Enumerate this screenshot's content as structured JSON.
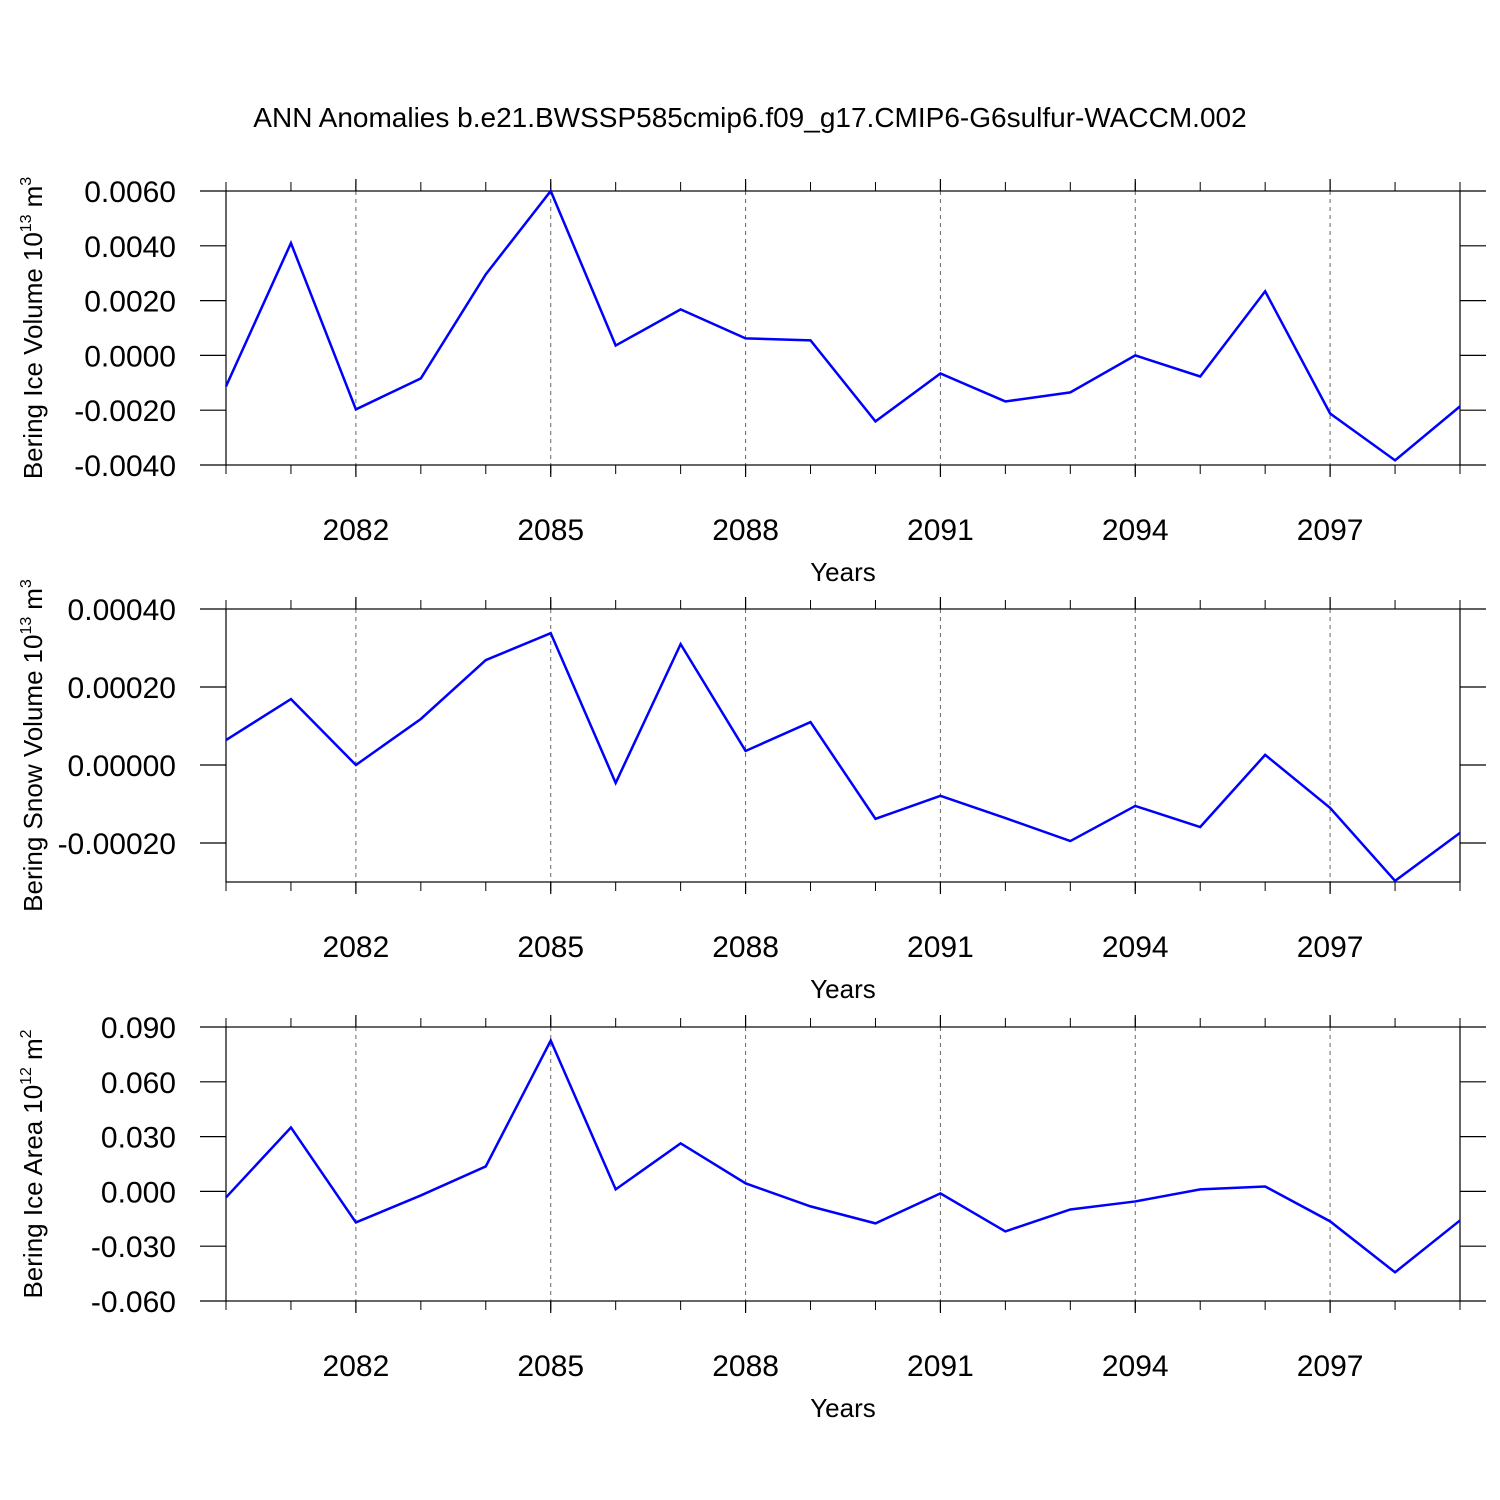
{
  "chart_data": [
    {
      "type": "line",
      "title": "ANN Anomalies b.e21.BWSSP585cmip6.f09_g17.CMIP6-G6sulfur-WACCM.002",
      "xlabel": "Years",
      "ylabel": {
        "text": "Bering Ice Volume",
        "base": "10",
        "exponent": "13",
        "unit": "m",
        "unit_exponent": "3"
      },
      "x": [
        2080,
        2081,
        2082,
        2083,
        2084,
        2085,
        2086,
        2087,
        2088,
        2089,
        2090,
        2091,
        2092,
        2093,
        2094,
        2095,
        2096,
        2097,
        2098,
        2099
      ],
      "series": [
        {
          "color": "#0000ff",
          "values": [
            -0.00113,
            0.0041,
            -0.00197,
            -0.00084,
            0.00296,
            0.006,
            0.00036,
            0.00168,
            0.00062,
            0.00055,
            -0.00241,
            -0.00066,
            -0.00168,
            -0.00135,
            0.0,
            -0.00077,
            0.00234,
            -0.00212,
            -0.00383,
            -0.00186
          ]
        }
      ],
      "xlim": [
        2080,
        2099
      ],
      "xticks": [
        2082,
        2085,
        2088,
        2091,
        2094,
        2097
      ],
      "ylim": [
        -0.004,
        0.006
      ],
      "yticks": [
        {
          "value": -0.004,
          "label": "-0.0040"
        },
        {
          "value": -0.002,
          "label": "-0.0020"
        },
        {
          "value": 0,
          "label": "0.0000"
        },
        {
          "value": 0.002,
          "label": "0.0020"
        },
        {
          "value": 0.004,
          "label": "0.0040"
        },
        {
          "value": 0.006,
          "label": "0.0060"
        }
      ],
      "grid": "x-dashed"
    },
    {
      "type": "line",
      "xlabel": "Years",
      "ylabel": {
        "text": "Bering Snow Volume",
        "base": "10",
        "exponent": "13",
        "unit": "m",
        "unit_exponent": "3"
      },
      "x": [
        2080,
        2081,
        2082,
        2083,
        2084,
        2085,
        2086,
        2087,
        2088,
        2089,
        2090,
        2091,
        2092,
        2093,
        2094,
        2095,
        2096,
        2097,
        2098,
        2099
      ],
      "series": [
        {
          "color": "#0000ff",
          "values": [
            6.4e-05,
            0.000169,
            0.0,
            0.000118,
            0.000269,
            0.000338,
            -4.6e-05,
            0.00031,
            3.6e-05,
            0.00011,
            -0.000138,
            -7.9e-05,
            -0.000136,
            -0.000195,
            -0.000105,
            -0.000159,
            2.6e-05,
            -0.00011,
            -0.000297,
            -0.000174
          ]
        }
      ],
      "xlim": [
        2080,
        2099
      ],
      "xticks": [
        2082,
        2085,
        2088,
        2091,
        2094,
        2097
      ],
      "ylim": [
        -0.0003,
        0.0004
      ],
      "yticks": [
        {
          "value": -0.0002,
          "label": "-0.00020"
        },
        {
          "value": 0,
          "label": "0.00000"
        },
        {
          "value": 0.0002,
          "label": "0.00020"
        },
        {
          "value": 0.0004,
          "label": "0.00040"
        }
      ],
      "grid": "x-dashed"
    },
    {
      "type": "line",
      "xlabel": "Years",
      "ylabel": {
        "text": "Bering Ice Area",
        "base": "10",
        "exponent": "12",
        "unit": "m",
        "unit_exponent": "2"
      },
      "x": [
        2080,
        2081,
        2082,
        2083,
        2084,
        2085,
        2086,
        2087,
        2088,
        2089,
        2090,
        2091,
        2092,
        2093,
        2094,
        2095,
        2096,
        2097,
        2098,
        2099
      ],
      "series": [
        {
          "color": "#0000ff",
          "values": [
            -0.0033,
            0.035,
            -0.017,
            -0.0022,
            0.0137,
            0.0826,
            0.0011,
            0.0263,
            0.0044,
            -0.0082,
            -0.0175,
            -0.0011,
            -0.0219,
            -0.0099,
            -0.0055,
            0.0011,
            0.0027,
            -0.0164,
            -0.0443,
            -0.0159
          ]
        }
      ],
      "xlim": [
        2080,
        2099
      ],
      "xticks": [
        2082,
        2085,
        2088,
        2091,
        2094,
        2097
      ],
      "ylim": [
        -0.06,
        0.09
      ],
      "yticks": [
        {
          "value": -0.06,
          "label": "-0.060"
        },
        {
          "value": -0.03,
          "label": "-0.030"
        },
        {
          "value": 0,
          "label": "0.000"
        },
        {
          "value": 0.03,
          "label": "0.030"
        },
        {
          "value": 0.06,
          "label": "0.060"
        },
        {
          "value": 0.09,
          "label": "0.090"
        }
      ],
      "grid": "x-dashed"
    }
  ]
}
